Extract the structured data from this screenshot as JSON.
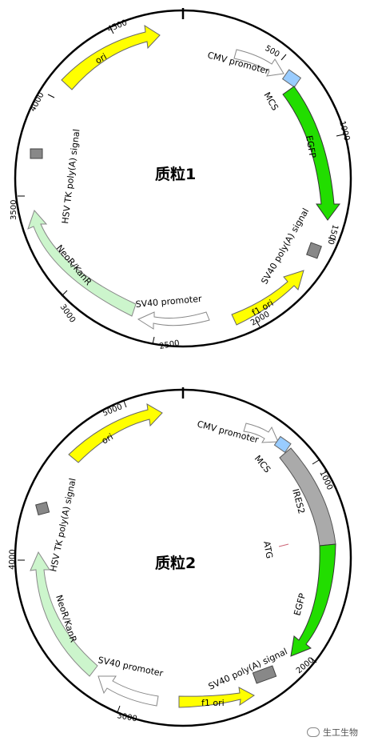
{
  "plasmid1": {
    "title": "质粒1",
    "ticks": [
      "500",
      "1000",
      "1500",
      "2000",
      "2500",
      "3000",
      "3500",
      "4000",
      "4500"
    ],
    "features": {
      "cmv": "CMV promoter",
      "mcs": "MCS",
      "egfp": "EGFP",
      "sv40pa": "SV40 poly(A) signal",
      "f1ori": "f1 ori",
      "sv40prom": "SV40 promoter",
      "neo": "NeoR/KanR",
      "hsvtk": "HSV TK poly(A) signal",
      "ori": "ori"
    }
  },
  "plasmid2": {
    "title": "质粒2",
    "ticks": [
      "1000",
      "2000",
      "3000",
      "4000",
      "5000"
    ],
    "features": {
      "cmv": "CMV promoter",
      "mcs": "MCS",
      "ires": "IRES2",
      "atg": "ATG",
      "egfp": "EGFP",
      "sv40pa": "SV40 poly(A) signal",
      "f1ori": "f1 ori",
      "sv40prom": "SV40 promoter",
      "neo": "NeoR/KanR",
      "hsvtk": "HSV TK poly(A) signal",
      "ori": "ori"
    }
  },
  "colors": {
    "ori": "#ffff00",
    "egfp": "#22dd00",
    "neo": "#ccf5cc",
    "promoter": "#ffffff",
    "mcs": "#99ccff",
    "ires": "#aaaaaa",
    "box": "#888888"
  },
  "watermark": "生工生物"
}
